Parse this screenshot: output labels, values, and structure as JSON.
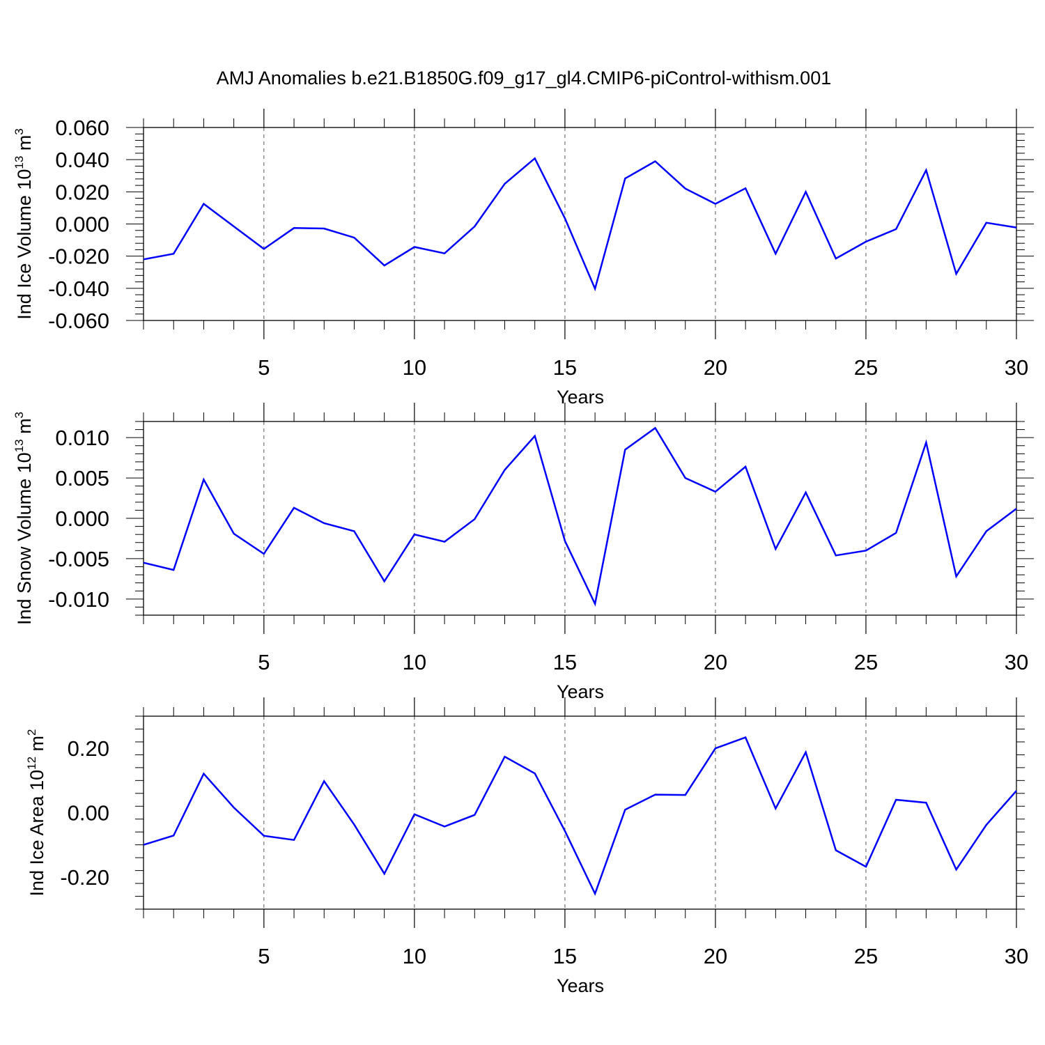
{
  "title": "AMJ Anomalies b.e21.B1850G.f09_g17_gl4.CMIP6-piControl-withism.001",
  "line_color": "#0000ff",
  "chart_data": [
    {
      "type": "line",
      "xlabel": "Years",
      "ylabel_main": "Ind Ice Volume 10",
      "ylabel_exp": "13",
      "ylabel_unit": " m",
      "ylabel_unit_exp": "3",
      "xlim": [
        1,
        30
      ],
      "ylim": [
        -0.06,
        0.06
      ],
      "xticks": [
        5,
        10,
        15,
        20,
        25,
        30
      ],
      "yticks": [
        -0.06,
        -0.04,
        -0.02,
        0.0,
        0.02,
        0.04,
        0.06
      ],
      "ytick_labels": [
        "-0.060",
        "-0.040",
        "-0.020",
        "0.000",
        "0.020",
        "0.040",
        "0.060"
      ],
      "x": [
        1,
        2,
        3,
        4,
        5,
        6,
        7,
        8,
        9,
        10,
        11,
        12,
        13,
        14,
        15,
        16,
        17,
        18,
        19,
        20,
        21,
        22,
        23,
        24,
        25,
        26,
        27,
        28,
        29,
        30
      ],
      "values": [
        -0.022,
        -0.0185,
        0.0125,
        -0.0015,
        -0.0155,
        -0.0025,
        -0.0028,
        -0.0085,
        -0.0258,
        -0.0143,
        -0.0183,
        -0.0015,
        0.025,
        0.0408,
        0.0035,
        -0.0403,
        0.0283,
        0.039,
        0.022,
        0.0125,
        0.0222,
        -0.0185,
        0.02,
        -0.0215,
        -0.011,
        -0.0032,
        0.0335,
        -0.031,
        0.0008,
        -0.0022
      ]
    },
    {
      "type": "line",
      "xlabel": "Years",
      "ylabel_main": "Ind Snow Volume 10",
      "ylabel_exp": "13",
      "ylabel_unit": " m",
      "ylabel_unit_exp": "3",
      "xlim": [
        1,
        30
      ],
      "ylim": [
        -0.012,
        0.012
      ],
      "xticks": [
        5,
        10,
        15,
        20,
        25,
        30
      ],
      "yticks": [
        -0.01,
        -0.005,
        0.0,
        0.005,
        0.01
      ],
      "ytick_labels": [
        "-0.010",
        "-0.005",
        "0.000",
        "0.005",
        "0.010"
      ],
      "x": [
        1,
        2,
        3,
        4,
        5,
        6,
        7,
        8,
        9,
        10,
        11,
        12,
        13,
        14,
        15,
        16,
        17,
        18,
        19,
        20,
        21,
        22,
        23,
        24,
        25,
        26,
        27,
        28,
        29,
        30
      ],
      "values": [
        -0.0055,
        -0.0064,
        0.0048,
        -0.0019,
        -0.0044,
        0.0013,
        -0.0006,
        -0.0016,
        -0.0078,
        -0.002,
        -0.0029,
        -0.0001,
        0.006,
        0.0102,
        -0.0028,
        -0.0106,
        0.0085,
        0.0112,
        0.005,
        0.0033,
        0.0064,
        -0.0038,
        0.0032,
        -0.0046,
        -0.004,
        -0.0018,
        0.0094,
        -0.0072,
        -0.0016,
        0.0012
      ]
    },
    {
      "type": "line",
      "xlabel": "Years",
      "ylabel_main": "Ind Ice Area 10",
      "ylabel_exp": "12",
      "ylabel_unit": " m",
      "ylabel_unit_exp": "2",
      "xlim": [
        1,
        30
      ],
      "ylim": [
        -0.3,
        0.3
      ],
      "xticks": [
        5,
        10,
        15,
        20,
        25,
        30
      ],
      "yticks": [
        -0.2,
        0.0,
        0.2
      ],
      "ytick_labels": [
        "-0.20",
        "0.00",
        "0.20"
      ],
      "x": [
        1,
        2,
        3,
        4,
        5,
        6,
        7,
        8,
        9,
        10,
        11,
        12,
        13,
        14,
        15,
        16,
        17,
        18,
        19,
        20,
        21,
        22,
        23,
        24,
        25,
        26,
        27,
        28,
        29,
        30
      ],
      "values": [
        -0.1,
        -0.071,
        0.121,
        0.016,
        -0.072,
        -0.085,
        0.098,
        -0.037,
        -0.19,
        -0.005,
        -0.043,
        -0.007,
        0.174,
        0.122,
        -0.057,
        -0.252,
        0.009,
        0.056,
        0.055,
        0.2,
        0.234,
        0.013,
        0.188,
        -0.117,
        -0.168,
        0.04,
        0.031,
        -0.177,
        -0.038,
        0.068
      ]
    }
  ]
}
